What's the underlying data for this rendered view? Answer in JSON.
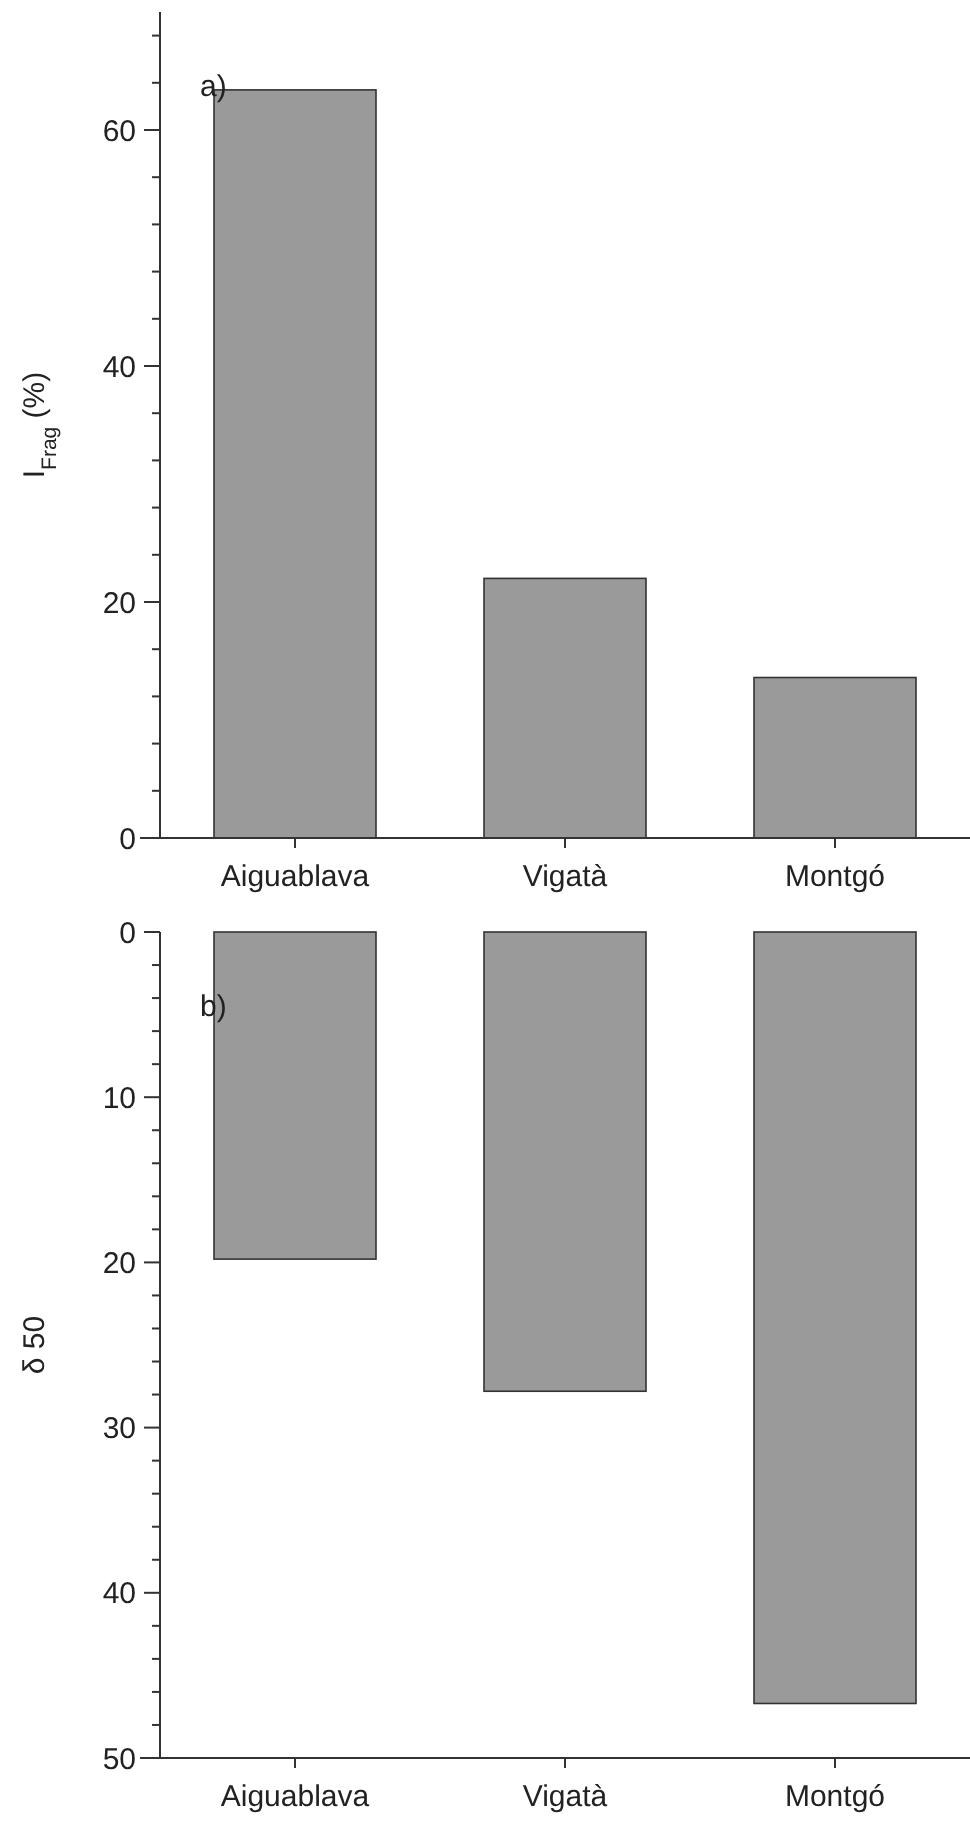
{
  "chart_data": [
    {
      "type": "bar",
      "categories": [
        "Aiguablava",
        "Vigatà",
        "Montgó"
      ],
      "values": [
        63.4,
        22.0,
        13.6
      ],
      "color": "#999a99",
      "ylabel": "I$_{Frag}$ (%)",
      "ylim": [
        0,
        70
      ],
      "yticks": [
        0,
        {
          "value": 4,
          "label": null
        },
        {
          "value": 8,
          "label": null
        },
        {
          "value": 12,
          "label": null
        },
        {
          "value": 16,
          "label": null
        },
        20,
        {
          "value": 24,
          "label": null
        },
        {
          "value": 28,
          "label": null
        },
        {
          "value": 32,
          "label": null
        },
        {
          "value": 36,
          "label": null
        },
        40,
        {
          "value": 44,
          "label": null
        },
        {
          "value": 48,
          "label": null
        },
        {
          "value": 52,
          "label": null
        },
        {
          "value": 56,
          "label": null
        },
        60,
        {
          "value": 64,
          "label": null
        },
        {
          "value": 68,
          "label": null
        }
      ],
      "annotations": [
        "a)"
      ],
      "grid": false
    },
    {
      "type": "bar",
      "categories": [
        "Aiguablava",
        "Vigatà",
        "Montgó"
      ],
      "values": [
        19.8,
        27.8,
        46.7
      ],
      "color": "#999a99",
      "ylabel": "δ 50",
      "ylim": [
        50,
        0
      ],
      "yticks": [
        0,
        {
          "value": 2,
          "label": null
        },
        {
          "value": 4,
          "label": null
        },
        {
          "value": 6,
          "label": null
        },
        {
          "value": 8,
          "label": null
        },
        10,
        {
          "value": 12,
          "label": null
        },
        {
          "value": 14,
          "label": null
        },
        {
          "value": 16,
          "label": null
        },
        {
          "value": 18,
          "label": null
        },
        20,
        {
          "value": 22,
          "label": null
        },
        {
          "value": 24,
          "label": null
        },
        {
          "value": 26,
          "label": null
        },
        {
          "value": 28,
          "label": null
        },
        30,
        {
          "value": 32,
          "label": null
        },
        {
          "value": 34,
          "label": null
        },
        {
          "value": 36,
          "label": null
        },
        {
          "value": 38,
          "label": null
        },
        40,
        {
          "value": 42,
          "label": null
        },
        {
          "value": 44,
          "label": null
        },
        {
          "value": 46,
          "label": null
        },
        {
          "value": 48,
          "label": null
        },
        50
      ],
      "annotations": [
        "b)"
      ],
      "grid": false
    }
  ]
}
